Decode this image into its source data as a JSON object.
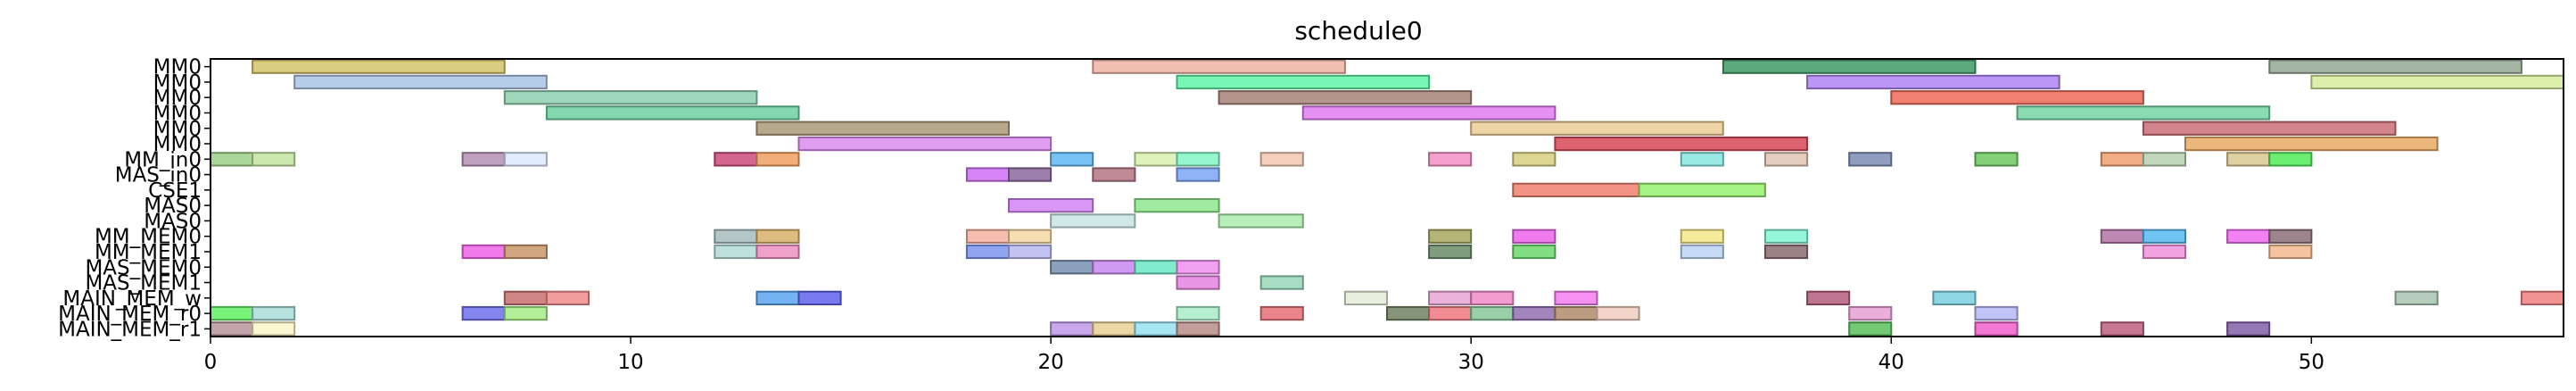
{
  "chart_data": {
    "type": "gantt",
    "title": "schedule0",
    "xlim": [
      0,
      56
    ],
    "x_ticks": [
      0,
      10,
      20,
      30,
      40,
      50
    ],
    "x_tick_labels": [
      "0",
      "10",
      "20",
      "30",
      "40",
      "50"
    ],
    "rows": [
      "MM0",
      "MM0",
      "MM0",
      "MM0",
      "MM0",
      "MM0",
      "MM_in0",
      "MAS_in0",
      "CSE1",
      "MAS0",
      "MAS0",
      "MM_MEM0",
      "MM_MEM1",
      "MAS_MEM0",
      "MAS_MEM1",
      "MAIN_MEM_w",
      "MAIN_MEM_r0",
      "MAIN_MEM_r1"
    ],
    "tasks": [
      {
        "row": 0,
        "start": 1,
        "end": 7,
        "color": "#d4c36a"
      },
      {
        "row": 0,
        "start": 21,
        "end": 27,
        "color": "#eeb4a4"
      },
      {
        "row": 0,
        "start": 36,
        "end": 42,
        "color": "#3f9a66"
      },
      {
        "row": 0,
        "start": 49,
        "end": 55,
        "color": "#94a894"
      },
      {
        "row": 1,
        "start": 2,
        "end": 8,
        "color": "#a8c4e4"
      },
      {
        "row": 1,
        "start": 23,
        "end": 29,
        "color": "#60f4a8"
      },
      {
        "row": 1,
        "start": 38,
        "end": 44,
        "color": "#b084f4"
      },
      {
        "row": 1,
        "start": 50,
        "end": 56,
        "color": "#d6ec9c"
      },
      {
        "row": 2,
        "start": 7,
        "end": 13,
        "color": "#8ed0b0"
      },
      {
        "row": 2,
        "start": 24,
        "end": 30,
        "color": "#a88478"
      },
      {
        "row": 2,
        "start": 40,
        "end": 46,
        "color": "#ee6a58"
      },
      {
        "row": 3,
        "start": 8,
        "end": 14,
        "color": "#6cd0a0"
      },
      {
        "row": 3,
        "start": 26,
        "end": 32,
        "color": "#e07cf0"
      },
      {
        "row": 3,
        "start": 43,
        "end": 49,
        "color": "#76d4a4"
      },
      {
        "row": 4,
        "start": 13,
        "end": 19,
        "color": "#aa9a78"
      },
      {
        "row": 4,
        "start": 30,
        "end": 36,
        "color": "#eccc96"
      },
      {
        "row": 4,
        "start": 46,
        "end": 52,
        "color": "#cc6e78"
      },
      {
        "row": 5,
        "start": 14,
        "end": 20,
        "color": "#da8cf0"
      },
      {
        "row": 5,
        "start": 32,
        "end": 38,
        "color": "#d84858"
      },
      {
        "row": 5,
        "start": 47,
        "end": 53,
        "color": "#eaaa64"
      },
      {
        "row": 6,
        "start": 0,
        "end": 1,
        "color": "#9ed088"
      },
      {
        "row": 6,
        "start": 1,
        "end": 2,
        "color": "#c4e4a0"
      },
      {
        "row": 6,
        "start": 6,
        "end": 7,
        "color": "#b490b4"
      },
      {
        "row": 6,
        "start": 7,
        "end": 8,
        "color": "#dceafc"
      },
      {
        "row": 6,
        "start": 12,
        "end": 13,
        "color": "#cc4c7c"
      },
      {
        "row": 6,
        "start": 13,
        "end": 14,
        "color": "#f0a060"
      },
      {
        "row": 6,
        "start": 20,
        "end": 21,
        "color": "#60b8f4"
      },
      {
        "row": 6,
        "start": 22,
        "end": 23,
        "color": "#d8f0b0"
      },
      {
        "row": 6,
        "start": 23,
        "end": 24,
        "color": "#84f4c4"
      },
      {
        "row": 6,
        "start": 25,
        "end": 26,
        "color": "#f4c8b0"
      },
      {
        "row": 6,
        "start": 29,
        "end": 30,
        "color": "#f490c4"
      },
      {
        "row": 6,
        "start": 31,
        "end": 32,
        "color": "#d8d080"
      },
      {
        "row": 6,
        "start": 35,
        "end": 36,
        "color": "#88e8e0"
      },
      {
        "row": 6,
        "start": 37,
        "end": 38,
        "color": "#e0c4b4"
      },
      {
        "row": 6,
        "start": 39,
        "end": 40,
        "color": "#7c8cb4"
      },
      {
        "row": 6,
        "start": 42,
        "end": 43,
        "color": "#6cc860"
      },
      {
        "row": 6,
        "start": 45,
        "end": 46,
        "color": "#f0a070"
      },
      {
        "row": 6,
        "start": 46,
        "end": 47,
        "color": "#b8d0b0"
      },
      {
        "row": 6,
        "start": 48,
        "end": 49,
        "color": "#d8c890"
      },
      {
        "row": 6,
        "start": 49,
        "end": 50,
        "color": "#50ec58"
      },
      {
        "row": 7,
        "start": 18,
        "end": 19,
        "color": "#d070f4"
      },
      {
        "row": 7,
        "start": 19,
        "end": 20,
        "color": "#8c689c"
      },
      {
        "row": 7,
        "start": 21,
        "end": 22,
        "color": "#b47484"
      },
      {
        "row": 7,
        "start": 23,
        "end": 24,
        "color": "#7ca4f4"
      },
      {
        "row": 8,
        "start": 31,
        "end": 34,
        "color": "#f08070"
      },
      {
        "row": 8,
        "start": 34,
        "end": 37,
        "color": "#98f070"
      },
      {
        "row": 9,
        "start": 19,
        "end": 21,
        "color": "#d284f2"
      },
      {
        "row": 9,
        "start": 22,
        "end": 24,
        "color": "#8ee88e"
      },
      {
        "row": 10,
        "start": 20,
        "end": 22,
        "color": "#c8e4e4"
      },
      {
        "row": 10,
        "start": 24,
        "end": 26,
        "color": "#acecac"
      },
      {
        "row": 11,
        "start": 12,
        "end": 13,
        "color": "#a8bcbc"
      },
      {
        "row": 11,
        "start": 13,
        "end": 14,
        "color": "#d8b068"
      },
      {
        "row": 11,
        "start": 18,
        "end": 19,
        "color": "#f4b0a0"
      },
      {
        "row": 11,
        "start": 19,
        "end": 20,
        "color": "#f4d8a4"
      },
      {
        "row": 11,
        "start": 29,
        "end": 30,
        "color": "#a8a860"
      },
      {
        "row": 11,
        "start": 31,
        "end": 32,
        "color": "#ec64ec"
      },
      {
        "row": 11,
        "start": 35,
        "end": 36,
        "color": "#f4e888"
      },
      {
        "row": 11,
        "start": 37,
        "end": 38,
        "color": "#84f4d4"
      },
      {
        "row": 11,
        "start": 45,
        "end": 46,
        "color": "#b474a8"
      },
      {
        "row": 11,
        "start": 46,
        "end": 47,
        "color": "#58b8f0"
      },
      {
        "row": 11,
        "start": 48,
        "end": 49,
        "color": "#f06cf0"
      },
      {
        "row": 11,
        "start": 49,
        "end": 50,
        "color": "#8c7078"
      },
      {
        "row": 12,
        "start": 6,
        "end": 7,
        "color": "#f064e8"
      },
      {
        "row": 12,
        "start": 7,
        "end": 8,
        "color": "#c89868"
      },
      {
        "row": 12,
        "start": 12,
        "end": 13,
        "color": "#b4dcd8"
      },
      {
        "row": 12,
        "start": 13,
        "end": 14,
        "color": "#ec90c0"
      },
      {
        "row": 12,
        "start": 18,
        "end": 19,
        "color": "#7c94f0"
      },
      {
        "row": 12,
        "start": 19,
        "end": 20,
        "color": "#b8b8f0"
      },
      {
        "row": 12,
        "start": 29,
        "end": 30,
        "color": "#6a8c6a"
      },
      {
        "row": 12,
        "start": 31,
        "end": 32,
        "color": "#6cd86c"
      },
      {
        "row": 12,
        "start": 35,
        "end": 36,
        "color": "#bcd4f4"
      },
      {
        "row": 12,
        "start": 37,
        "end": 38,
        "color": "#8c6c70"
      },
      {
        "row": 12,
        "start": 46,
        "end": 47,
        "color": "#f090dc"
      },
      {
        "row": 12,
        "start": 49,
        "end": 50,
        "color": "#f4b890"
      },
      {
        "row": 13,
        "start": 20,
        "end": 21,
        "color": "#7890b0"
      },
      {
        "row": 13,
        "start": 21,
        "end": 22,
        "color": "#c888f0"
      },
      {
        "row": 13,
        "start": 22,
        "end": 23,
        "color": "#6ce8c4"
      },
      {
        "row": 13,
        "start": 23,
        "end": 24,
        "color": "#f090f0"
      },
      {
        "row": 14,
        "start": 23,
        "end": 24,
        "color": "#e484e0"
      },
      {
        "row": 14,
        "start": 25,
        "end": 26,
        "color": "#98d8b8"
      },
      {
        "row": 15,
        "start": 7,
        "end": 8,
        "color": "#c87070"
      },
      {
        "row": 15,
        "start": 8,
        "end": 9,
        "color": "#f08c8c"
      },
      {
        "row": 15,
        "start": 13,
        "end": 14,
        "color": "#5ca4f0"
      },
      {
        "row": 15,
        "start": 14,
        "end": 15,
        "color": "#6060ec"
      },
      {
        "row": 15,
        "start": 27,
        "end": 28,
        "color": "#e4ecd8"
      },
      {
        "row": 15,
        "start": 29,
        "end": 30,
        "color": "#e8a4d4"
      },
      {
        "row": 15,
        "start": 30,
        "end": 31,
        "color": "#f08cc8"
      },
      {
        "row": 15,
        "start": 32,
        "end": 33,
        "color": "#f47cf0"
      },
      {
        "row": 15,
        "start": 38,
        "end": 39,
        "color": "#b45c7c"
      },
      {
        "row": 15,
        "start": 41,
        "end": 42,
        "color": "#7cd0e0"
      },
      {
        "row": 15,
        "start": 52,
        "end": 53,
        "color": "#a8c4b0"
      },
      {
        "row": 15,
        "start": 55,
        "end": 56,
        "color": "#f08080"
      },
      {
        "row": 16,
        "start": 0,
        "end": 1,
        "color": "#60f060"
      },
      {
        "row": 16,
        "start": 1,
        "end": 2,
        "color": "#a8dcd8"
      },
      {
        "row": 16,
        "start": 6,
        "end": 7,
        "color": "#7070ec"
      },
      {
        "row": 16,
        "start": 7,
        "end": 8,
        "color": "#a4ec84"
      },
      {
        "row": 16,
        "start": 23,
        "end": 24,
        "color": "#a8ecc8"
      },
      {
        "row": 16,
        "start": 25,
        "end": 26,
        "color": "#e87078"
      },
      {
        "row": 16,
        "start": 28,
        "end": 29,
        "color": "#708060"
      },
      {
        "row": 16,
        "start": 29,
        "end": 30,
        "color": "#f07880"
      },
      {
        "row": 16,
        "start": 30,
        "end": 31,
        "color": "#88c898"
      },
      {
        "row": 16,
        "start": 31,
        "end": 32,
        "color": "#9070b0"
      },
      {
        "row": 16,
        "start": 32,
        "end": 33,
        "color": "#b08c6c"
      },
      {
        "row": 16,
        "start": 33,
        "end": 34,
        "color": "#f0ccc0"
      },
      {
        "row": 16,
        "start": 39,
        "end": 40,
        "color": "#e8a0d4"
      },
      {
        "row": 16,
        "start": 42,
        "end": 43,
        "color": "#b4b8f4"
      },
      {
        "row": 17,
        "start": 0,
        "end": 1,
        "color": "#b8949c"
      },
      {
        "row": 17,
        "start": 1,
        "end": 2,
        "color": "#fcf4c8"
      },
      {
        "row": 17,
        "start": 20,
        "end": 21,
        "color": "#c098e8"
      },
      {
        "row": 17,
        "start": 21,
        "end": 22,
        "color": "#e8d094"
      },
      {
        "row": 17,
        "start": 22,
        "end": 23,
        "color": "#98e0f0"
      },
      {
        "row": 17,
        "start": 23,
        "end": 24,
        "color": "#b88c88"
      },
      {
        "row": 17,
        "start": 39,
        "end": 40,
        "color": "#5cc05c"
      },
      {
        "row": 17,
        "start": 42,
        "end": 43,
        "color": "#f060cc"
      },
      {
        "row": 17,
        "start": 45,
        "end": 46,
        "color": "#c06080"
      },
      {
        "row": 17,
        "start": 48,
        "end": 49,
        "color": "#8060a8"
      }
    ]
  }
}
